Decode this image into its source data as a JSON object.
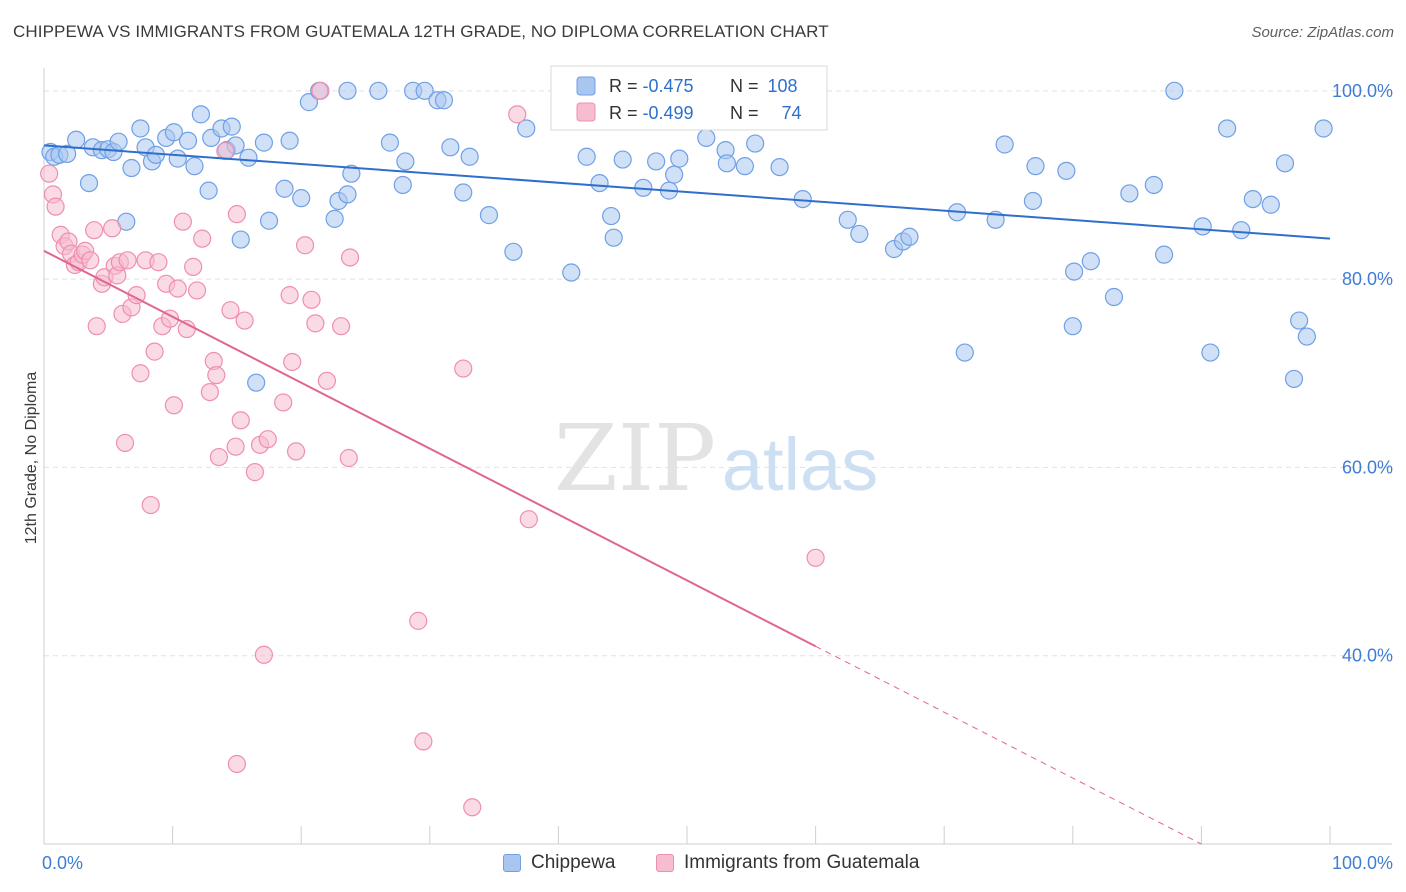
{
  "header": {
    "title": "CHIPPEWA VS IMMIGRANTS FROM GUATEMALA 12TH GRADE, NO DIPLOMA CORRELATION CHART",
    "source": "Source: ZipAtlas.com"
  },
  "watermark": {
    "zip": "ZIP",
    "atlas": "atlas"
  },
  "chart_data": {
    "type": "scatter",
    "title": "CHIPPEWA VS IMMIGRANTS FROM GUATEMALA 12TH GRADE, NO DIPLOMA CORRELATION CHART",
    "xlabel": "",
    "ylabel": "12th Grade, No Diploma",
    "xlim": [
      0,
      100
    ],
    "ylim": [
      20,
      102
    ],
    "x_tick_labels": {
      "left": "0.0%",
      "right": "100.0%"
    },
    "y_ticks": [
      {
        "value": 100,
        "label": "100.0%"
      },
      {
        "value": 80,
        "label": "80.0%"
      },
      {
        "value": 60,
        "label": "60.0%"
      },
      {
        "value": 40,
        "label": "40.0%"
      }
    ],
    "grid": "horizontal dashed",
    "legend_top": [
      {
        "r_label": "R = ",
        "r_value": "-0.475",
        "n_label": "N = ",
        "n_value": "108"
      },
      {
        "r_label": "R = ",
        "r_value": "-0.499",
        "n_label": "N = ",
        "n_value": "74"
      }
    ],
    "legend_placement": "top-center",
    "series": [
      {
        "name": "Chippewa",
        "color": "#6fa0e6",
        "fill": "#a9c6f0",
        "line_color": "#2f6fcc",
        "trend": {
          "x0": 0,
          "y0": 94.2,
          "x1": 100,
          "y1": 84.3
        },
        "points": [
          [
            0.5,
            93.5
          ],
          [
            0.8,
            93.0
          ],
          [
            1.2,
            93.2
          ],
          [
            1.8,
            93.3
          ],
          [
            2.5,
            94.8
          ],
          [
            3.5,
            90.2
          ],
          [
            3.8,
            94.0
          ],
          [
            4.5,
            93.7
          ],
          [
            5.0,
            93.8
          ],
          [
            5.4,
            93.5
          ],
          [
            5.8,
            94.6
          ],
          [
            6.4,
            86.1
          ],
          [
            6.8,
            91.8
          ],
          [
            7.5,
            96.0
          ],
          [
            7.9,
            94.0
          ],
          [
            8.4,
            92.5
          ],
          [
            8.7,
            93.2
          ],
          [
            9.5,
            95.0
          ],
          [
            10.1,
            95.6
          ],
          [
            10.4,
            92.8
          ],
          [
            11.2,
            94.7
          ],
          [
            11.7,
            92.0
          ],
          [
            12.2,
            97.5
          ],
          [
            12.8,
            89.4
          ],
          [
            13.0,
            95.0
          ],
          [
            13.8,
            96.0
          ],
          [
            14.2,
            93.7
          ],
          [
            14.6,
            96.2
          ],
          [
            14.9,
            94.2
          ],
          [
            15.3,
            84.2
          ],
          [
            15.9,
            92.9
          ],
          [
            16.5,
            69.0
          ],
          [
            17.1,
            94.5
          ],
          [
            17.5,
            86.2
          ],
          [
            18.7,
            89.6
          ],
          [
            19.1,
            94.7
          ],
          [
            20.0,
            88.6
          ],
          [
            20.6,
            98.8
          ],
          [
            21.4,
            100.0
          ],
          [
            22.6,
            86.4
          ],
          [
            22.9,
            88.3
          ],
          [
            23.6,
            89.0
          ],
          [
            23.9,
            91.2
          ],
          [
            23.6,
            100.0
          ],
          [
            26.0,
            100.0
          ],
          [
            26.9,
            94.5
          ],
          [
            27.9,
            90.0
          ],
          [
            28.1,
            92.5
          ],
          [
            28.7,
            100.0
          ],
          [
            29.6,
            100.0
          ],
          [
            30.6,
            99.0
          ],
          [
            31.1,
            99.0
          ],
          [
            31.6,
            94.0
          ],
          [
            32.6,
            89.2
          ],
          [
            33.1,
            93.0
          ],
          [
            34.6,
            86.8
          ],
          [
            36.5,
            82.9
          ],
          [
            37.5,
            96.0
          ],
          [
            41.0,
            80.7
          ],
          [
            42.2,
            93.0
          ],
          [
            43.2,
            90.2
          ],
          [
            44.1,
            86.7
          ],
          [
            44.3,
            84.4
          ],
          [
            45.0,
            92.7
          ],
          [
            46.6,
            89.7
          ],
          [
            47.6,
            92.5
          ],
          [
            48.6,
            89.4
          ],
          [
            49.0,
            91.1
          ],
          [
            49.4,
            92.8
          ],
          [
            51.5,
            95.0
          ],
          [
            53.0,
            93.7
          ],
          [
            53.1,
            92.3
          ],
          [
            54.5,
            92.0
          ],
          [
            55.3,
            94.4
          ],
          [
            57.2,
            91.9
          ],
          [
            59.0,
            88.5
          ],
          [
            62.5,
            86.3
          ],
          [
            63.4,
            84.8
          ],
          [
            66.1,
            83.2
          ],
          [
            66.8,
            84.0
          ],
          [
            67.3,
            84.5
          ],
          [
            71.0,
            87.1
          ],
          [
            71.6,
            72.2
          ],
          [
            74.0,
            86.3
          ],
          [
            74.7,
            94.3
          ],
          [
            76.9,
            88.3
          ],
          [
            77.1,
            92.0
          ],
          [
            79.5,
            91.5
          ],
          [
            80.0,
            75.0
          ],
          [
            80.1,
            80.8
          ],
          [
            81.4,
            81.9
          ],
          [
            83.2,
            78.1
          ],
          [
            84.4,
            89.1
          ],
          [
            86.3,
            90.0
          ],
          [
            87.1,
            82.6
          ],
          [
            87.9,
            100.0
          ],
          [
            90.1,
            85.6
          ],
          [
            90.7,
            72.2
          ],
          [
            92.0,
            96.0
          ],
          [
            93.1,
            85.2
          ],
          [
            94.0,
            88.5
          ],
          [
            95.4,
            87.9
          ],
          [
            96.5,
            92.3
          ],
          [
            97.2,
            69.4
          ],
          [
            97.6,
            75.6
          ],
          [
            98.2,
            73.9
          ],
          [
            99.5,
            96.0
          ]
        ]
      },
      {
        "name": "Immigrants from Guatemala",
        "color": "#ef8fae",
        "fill": "#f6bcd0",
        "line_color": "#e0668f",
        "trend": {
          "x0": 0,
          "y0": 83.0,
          "x1": 60.0,
          "y1": 41.0,
          "dash_to": {
            "x": 90.0,
            "y": 20.0
          }
        },
        "points": [
          [
            0.4,
            91.2
          ],
          [
            0.7,
            89.0
          ],
          [
            0.9,
            87.7
          ],
          [
            1.3,
            84.7
          ],
          [
            1.6,
            83.5
          ],
          [
            1.9,
            84.0
          ],
          [
            2.1,
            82.7
          ],
          [
            2.4,
            81.5
          ],
          [
            2.7,
            81.8
          ],
          [
            3.0,
            82.6
          ],
          [
            3.2,
            83.0
          ],
          [
            3.6,
            82.0
          ],
          [
            3.9,
            85.2
          ],
          [
            4.1,
            75.0
          ],
          [
            4.5,
            79.5
          ],
          [
            4.7,
            80.2
          ],
          [
            5.3,
            85.4
          ],
          [
            5.5,
            81.4
          ],
          [
            5.7,
            80.4
          ],
          [
            5.9,
            81.8
          ],
          [
            6.1,
            76.3
          ],
          [
            6.3,
            62.6
          ],
          [
            6.5,
            82.0
          ],
          [
            6.8,
            77.0
          ],
          [
            7.2,
            78.3
          ],
          [
            7.5,
            70.0
          ],
          [
            7.9,
            82.0
          ],
          [
            8.3,
            56.0
          ],
          [
            8.6,
            72.3
          ],
          [
            8.9,
            81.8
          ],
          [
            9.2,
            75.0
          ],
          [
            9.5,
            79.5
          ],
          [
            9.8,
            75.8
          ],
          [
            10.1,
            66.6
          ],
          [
            10.4,
            79.0
          ],
          [
            10.8,
            86.1
          ],
          [
            11.1,
            74.7
          ],
          [
            11.6,
            81.3
          ],
          [
            11.9,
            78.8
          ],
          [
            12.3,
            84.3
          ],
          [
            12.9,
            68.0
          ],
          [
            13.2,
            71.3
          ],
          [
            13.4,
            69.8
          ],
          [
            13.6,
            61.1
          ],
          [
            14.1,
            93.6
          ],
          [
            14.5,
            76.7
          ],
          [
            14.9,
            62.2
          ],
          [
            15.0,
            86.9
          ],
          [
            15.3,
            65.0
          ],
          [
            15.6,
            75.6
          ],
          [
            16.4,
            59.5
          ],
          [
            16.8,
            62.4
          ],
          [
            17.1,
            40.1
          ],
          [
            17.4,
            63.0
          ],
          [
            18.6,
            66.9
          ],
          [
            19.1,
            78.3
          ],
          [
            19.3,
            71.2
          ],
          [
            19.6,
            61.7
          ],
          [
            20.3,
            83.6
          ],
          [
            20.8,
            77.8
          ],
          [
            21.1,
            75.3
          ],
          [
            21.5,
            100.0
          ],
          [
            22.0,
            69.2
          ],
          [
            23.1,
            75.0
          ],
          [
            23.7,
            61.0
          ],
          [
            23.8,
            82.3
          ],
          [
            29.1,
            43.7
          ],
          [
            29.5,
            30.9
          ],
          [
            32.6,
            70.5
          ],
          [
            33.3,
            23.9
          ],
          [
            36.8,
            97.5
          ],
          [
            37.7,
            54.5
          ],
          [
            60.0,
            50.4
          ],
          [
            15.0,
            28.5
          ]
        ]
      }
    ]
  },
  "legend_bottom": [
    "Chippewa",
    "Immigrants from Guatemala"
  ]
}
